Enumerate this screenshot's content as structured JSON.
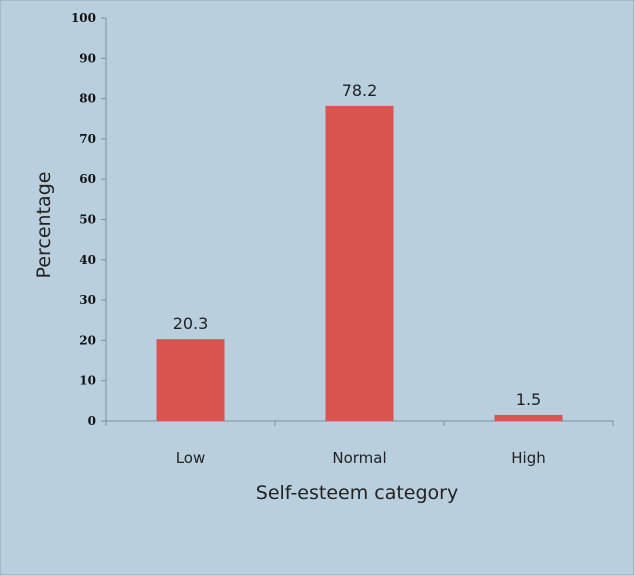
{
  "chart_data": {
    "type": "bar",
    "categories": [
      "Low",
      "Normal",
      "High"
    ],
    "values": [
      20.3,
      78.2,
      1.5
    ],
    "data_labels": [
      "20.3",
      "78.2",
      "1.5"
    ],
    "xlabel": "Self-esteem category",
    "ylabel": "Percentage",
    "ylim": [
      0,
      100
    ],
    "yticks": [
      0,
      10,
      20,
      30,
      40,
      50,
      60,
      70,
      80,
      90,
      100
    ],
    "grid": false,
    "legend": "none",
    "bar_color": "#d9534f",
    "background_color": "#b9cfdd",
    "frame_color": "#8fa3b3"
  }
}
